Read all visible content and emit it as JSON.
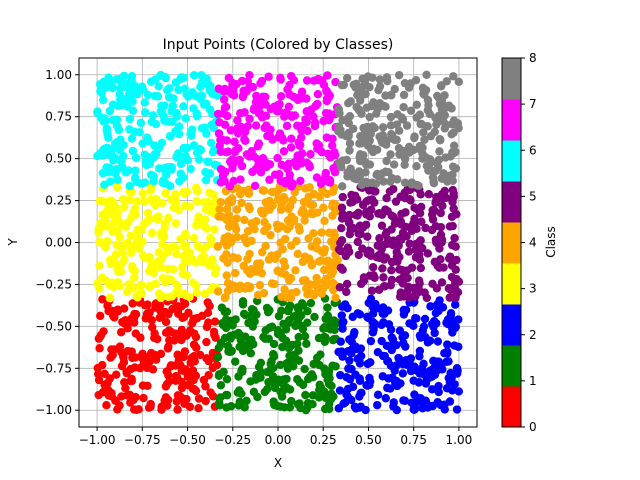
{
  "chart_data": {
    "type": "scatter",
    "title": "Input Points (Colored by Classes)",
    "xlabel": "X",
    "ylabel": "Y",
    "xlim": [
      -1.1,
      1.1
    ],
    "ylim": [
      -1.1,
      1.1
    ],
    "xticks": [
      -1.0,
      -0.75,
      -0.5,
      -0.25,
      0.0,
      0.25,
      0.5,
      0.75,
      1.0
    ],
    "xtick_labels": [
      "−1.00",
      "−0.75",
      "−0.50",
      "−0.25",
      "0.00",
      "0.25",
      "0.50",
      "0.75",
      "1.00"
    ],
    "yticks": [
      -1.0,
      -0.75,
      -0.5,
      -0.25,
      0.0,
      0.25,
      0.5,
      0.75,
      1.0
    ],
    "ytick_labels": [
      "−1.00",
      "−0.75",
      "−0.50",
      "−0.25",
      "0.00",
      "0.25",
      "0.50",
      "0.75",
      "1.00"
    ],
    "grid": true,
    "point_count_per_class": 250,
    "classes": [
      {
        "class": 0,
        "color": "#ff0000",
        "x_range": [
          -1.0,
          -0.333
        ],
        "y_range": [
          -1.0,
          -0.333
        ]
      },
      {
        "class": 1,
        "color": "#008000",
        "x_range": [
          -0.333,
          0.333
        ],
        "y_range": [
          -1.0,
          -0.333
        ]
      },
      {
        "class": 2,
        "color": "#0000ff",
        "x_range": [
          0.333,
          1.0
        ],
        "y_range": [
          -1.0,
          -0.333
        ]
      },
      {
        "class": 3,
        "color": "#ffff00",
        "x_range": [
          -1.0,
          -0.333
        ],
        "y_range": [
          -0.333,
          0.333
        ]
      },
      {
        "class": 4,
        "color": "#ffa500",
        "x_range": [
          -0.333,
          0.333
        ],
        "y_range": [
          -0.333,
          0.333
        ]
      },
      {
        "class": 5,
        "color": "#800080",
        "x_range": [
          0.333,
          1.0
        ],
        "y_range": [
          -0.333,
          0.333
        ]
      },
      {
        "class": 6,
        "color": "#00ffff",
        "x_range": [
          -1.0,
          -0.333
        ],
        "y_range": [
          0.333,
          1.0
        ]
      },
      {
        "class": 7,
        "color": "#ff00ff",
        "x_range": [
          -0.333,
          0.333
        ],
        "y_range": [
          0.333,
          1.0
        ]
      },
      {
        "class": 8,
        "color": "#808080",
        "x_range": [
          0.333,
          1.0
        ],
        "y_range": [
          0.333,
          1.0
        ]
      }
    ],
    "colorbar": {
      "label": "Class",
      "range": [
        0,
        8
      ],
      "ticks": [
        0,
        1,
        2,
        3,
        4,
        5,
        6,
        7,
        8
      ],
      "tick_labels": [
        "0",
        "1",
        "2",
        "3",
        "4",
        "5",
        "6",
        "7",
        "8"
      ],
      "colors": [
        "#ff0000",
        "#008000",
        "#0000ff",
        "#ffff00",
        "#ffa500",
        "#800080",
        "#00ffff",
        "#ff00ff",
        "#808080"
      ]
    }
  }
}
